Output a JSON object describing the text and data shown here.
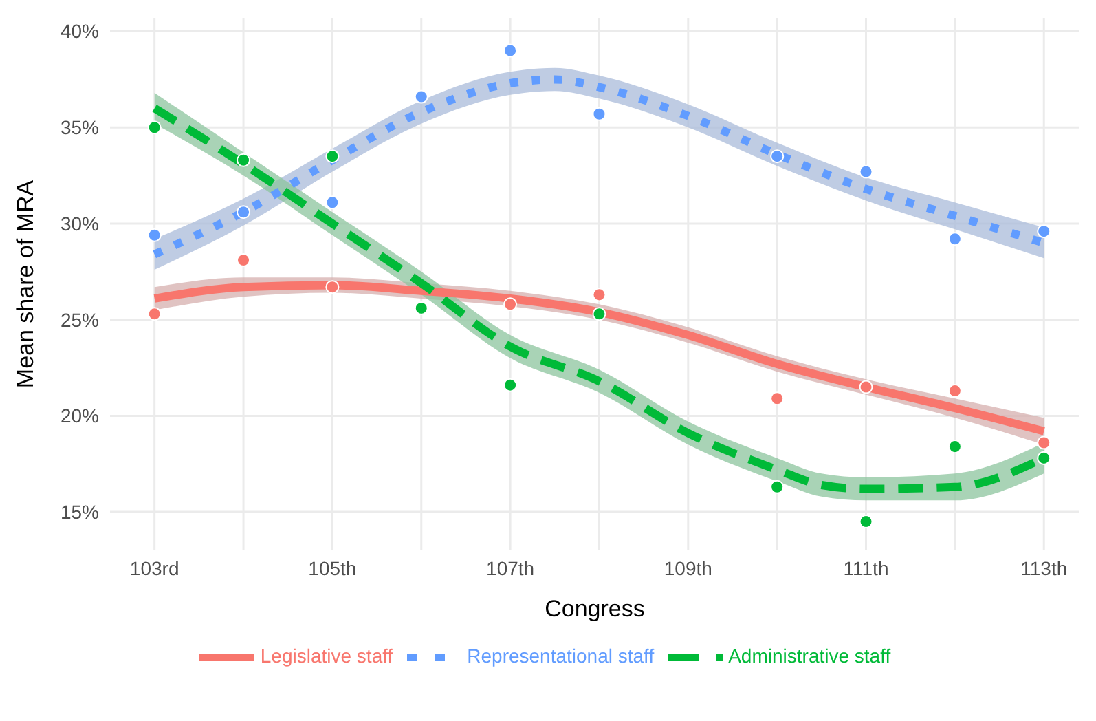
{
  "chart_data": {
    "type": "line",
    "xlabel": "Congress",
    "ylabel": "Mean share of MRA",
    "xlim": [
      102.5,
      113.4
    ],
    "ylim": [
      13,
      40.7
    ],
    "xticks": [
      {
        "value": 103,
        "label": "103rd"
      },
      {
        "value": 104,
        "label": null
      },
      {
        "value": 105,
        "label": "105th"
      },
      {
        "value": 106,
        "label": null
      },
      {
        "value": 107,
        "label": "107th"
      },
      {
        "value": 108,
        "label": null
      },
      {
        "value": 109,
        "label": "109th"
      },
      {
        "value": 110,
        "label": null
      },
      {
        "value": 111,
        "label": "111th"
      },
      {
        "value": 112,
        "label": null
      },
      {
        "value": 113,
        "label": "113th"
      }
    ],
    "yticks": [
      {
        "value": 15,
        "label": "15%"
      },
      {
        "value": 20,
        "label": "20%"
      },
      {
        "value": 25,
        "label": "25%"
      },
      {
        "value": 30,
        "label": "30%"
      },
      {
        "value": 35,
        "label": "35%"
      },
      {
        "value": 40,
        "label": "40%"
      }
    ],
    "grid": true,
    "legend": "bottom",
    "series": [
      {
        "type": "scatter",
        "color": "#f8766d",
        "marker": "circle",
        "x": [
          103,
          104,
          105,
          106,
          107,
          108,
          109,
          110,
          111,
          112,
          113
        ],
        "values": [
          25.3,
          28.1,
          26.7,
          null,
          25.8,
          26.3,
          null,
          20.9,
          21.5,
          21.3,
          18.6
        ]
      },
      {
        "type": "scatter",
        "color": "#619cff",
        "marker": "circle",
        "x": [
          103,
          104,
          105,
          106,
          107,
          108,
          109,
          110,
          111,
          112,
          113
        ],
        "values": [
          29.4,
          30.6,
          31.1,
          36.6,
          39.0,
          35.7,
          null,
          33.5,
          32.7,
          29.2,
          29.6
        ]
      },
      {
        "type": "scatter",
        "color": "#00ba38",
        "marker": "circle",
        "x": [
          103,
          104,
          105,
          106,
          107,
          108,
          109,
          110,
          111,
          112,
          113
        ],
        "values": [
          35.0,
          33.3,
          33.5,
          25.6,
          21.6,
          25.3,
          null,
          16.3,
          14.5,
          18.4,
          17.8
        ]
      },
      {
        "name": "Legislative staff",
        "color": "#f8766d",
        "line_style": "solid",
        "x": [
          103,
          104,
          105,
          106,
          107,
          108,
          109,
          110,
          111,
          112,
          113
        ],
        "values": [
          26.1,
          26.7,
          26.8,
          26.5,
          26.1,
          25.4,
          24.2,
          22.7,
          21.5,
          20.4,
          19.2
        ],
        "lower": [
          25.5,
          26.2,
          26.4,
          26.1,
          25.7,
          25.0,
          23.8,
          22.3,
          21.1,
          19.9,
          18.5
        ],
        "upper": [
          26.7,
          27.2,
          27.2,
          26.9,
          26.5,
          25.8,
          24.6,
          23.1,
          21.9,
          20.9,
          19.9
        ]
      },
      {
        "name": "Representational staff",
        "color": "#619cff",
        "line_style": "dotted",
        "x": [
          103,
          104,
          105,
          106,
          107,
          107.5,
          108,
          109,
          110,
          111,
          112,
          113
        ],
        "values": [
          28.4,
          30.6,
          33.3,
          35.8,
          37.3,
          37.5,
          37.1,
          35.6,
          33.6,
          31.8,
          30.4,
          29.0
        ],
        "lower": [
          27.6,
          29.9,
          32.7,
          35.2,
          36.7,
          36.9,
          36.5,
          35.0,
          33.0,
          31.2,
          29.7,
          28.2
        ],
        "upper": [
          29.2,
          31.3,
          33.9,
          36.4,
          37.9,
          38.1,
          37.7,
          36.2,
          34.2,
          32.4,
          31.1,
          29.8
        ]
      },
      {
        "name": "Administrative staff",
        "color": "#00ba38",
        "line_style": "dashed",
        "x": [
          103,
          104,
          105,
          106,
          107,
          108,
          109,
          110,
          110.5,
          111,
          112,
          113
        ],
        "values": [
          36.0,
          33.1,
          30.0,
          26.9,
          23.6,
          21.8,
          19.1,
          17.2,
          16.4,
          16.2,
          16.3,
          17.8
        ],
        "lower": [
          35.2,
          32.5,
          29.4,
          26.3,
          23.0,
          21.2,
          18.5,
          16.6,
          15.8,
          15.6,
          15.6,
          17.0
        ],
        "upper": [
          36.8,
          33.7,
          30.6,
          27.5,
          24.2,
          22.4,
          19.7,
          17.8,
          17.0,
          16.8,
          17.0,
          18.6
        ]
      }
    ]
  }
}
